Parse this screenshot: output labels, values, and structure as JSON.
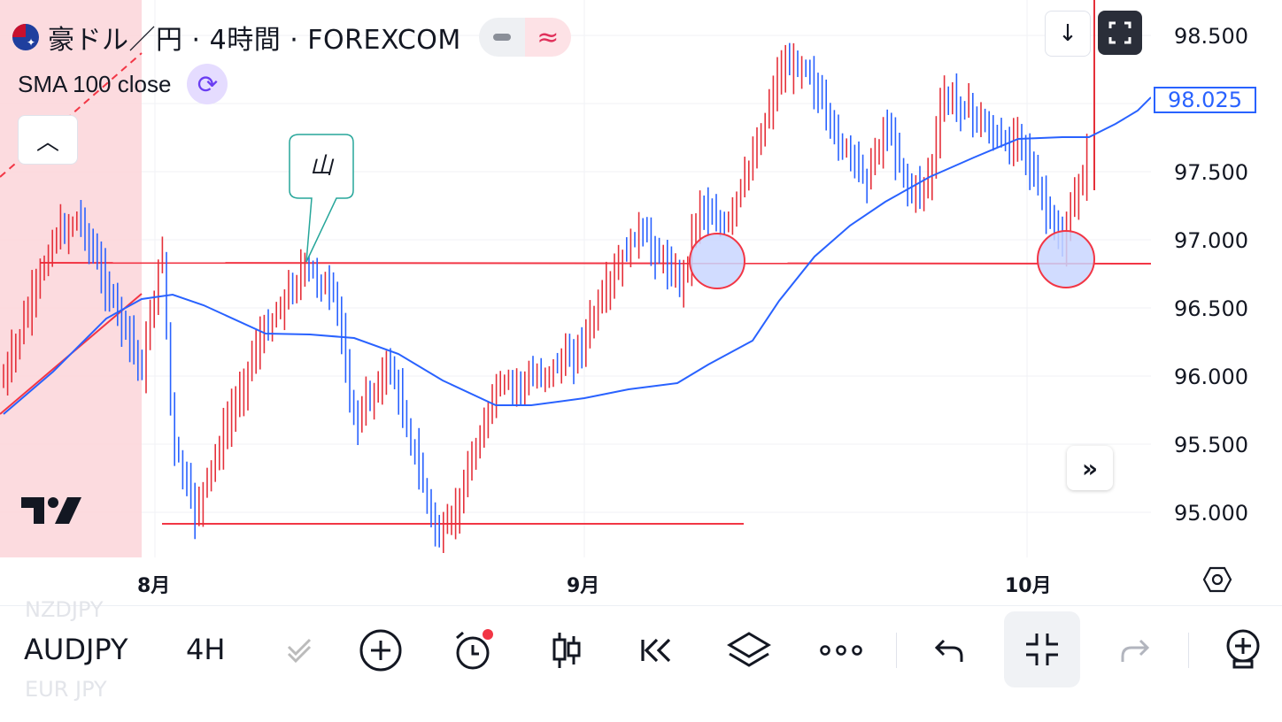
{
  "header": {
    "title": "豪ドル／円 · 4時間 · FOREXCOM",
    "indicator": "SMA 100 close"
  },
  "annotation": {
    "callout_text": "山"
  },
  "price_axis": {
    "labels": [
      "98.500",
      "97.500",
      "97.000",
      "96.500",
      "96.000",
      "95.500",
      "95.000"
    ],
    "current_price": "98.025"
  },
  "time_axis": {
    "labels": [
      "8月",
      "9月",
      "10月"
    ]
  },
  "toolbar": {
    "symbol": "AUDJPY",
    "symbol_prev": "NZDJPY",
    "symbol_next": "EUR JPY",
    "interval": "4H"
  },
  "colors": {
    "up": "#e5303a",
    "down": "#2962ff",
    "sma": "#2962ff",
    "hline": "#f23645",
    "callout": "#26a69a"
  }
}
